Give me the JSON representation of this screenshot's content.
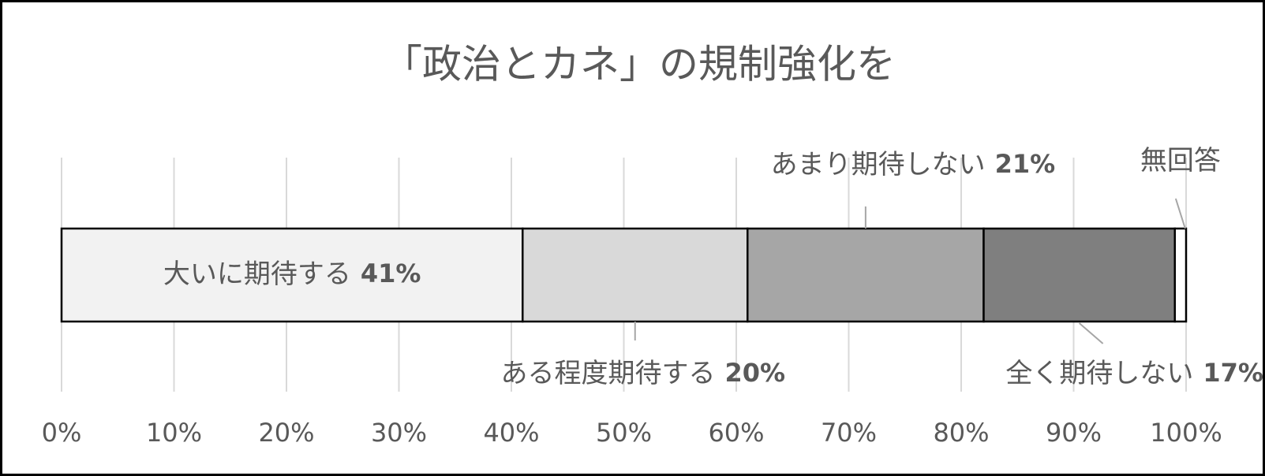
{
  "chart_data": {
    "type": "stacked-bar-horizontal",
    "title": "「政治とカネ」の規制強化を",
    "series": [
      {
        "name": "大いに期待する",
        "color": "#f2f2f2",
        "values": [
          41
        ],
        "value_labels": [
          "41%"
        ]
      },
      {
        "name": "ある程度期待する",
        "color": "#d9d9d9",
        "values": [
          20
        ],
        "value_labels": [
          "20%"
        ]
      },
      {
        "name": "あまり期待しない",
        "color": "#a6a6a6",
        "values": [
          21
        ],
        "value_labels": [
          "21%"
        ]
      },
      {
        "name": "全く期待しない",
        "color": "#7f7f7f",
        "values": [
          17
        ],
        "value_labels": [
          "17%"
        ]
      },
      {
        "name": "無回答",
        "color": "#ffffff",
        "values": [
          1
        ]
      }
    ],
    "xlim": [
      0,
      100
    ],
    "xticks": [
      {
        "value": 0,
        "label": "0%"
      },
      {
        "value": 10,
        "label": "10%"
      },
      {
        "value": 20,
        "label": "20%"
      },
      {
        "value": 30,
        "label": "30%"
      },
      {
        "value": 40,
        "label": "40%"
      },
      {
        "value": 50,
        "label": "50%"
      },
      {
        "value": 60,
        "label": "60%"
      },
      {
        "value": 70,
        "label": "70%"
      },
      {
        "value": 80,
        "label": "80%"
      },
      {
        "value": 90,
        "label": "90%"
      },
      {
        "value": 100,
        "label": "100%"
      }
    ],
    "grid": true
  }
}
